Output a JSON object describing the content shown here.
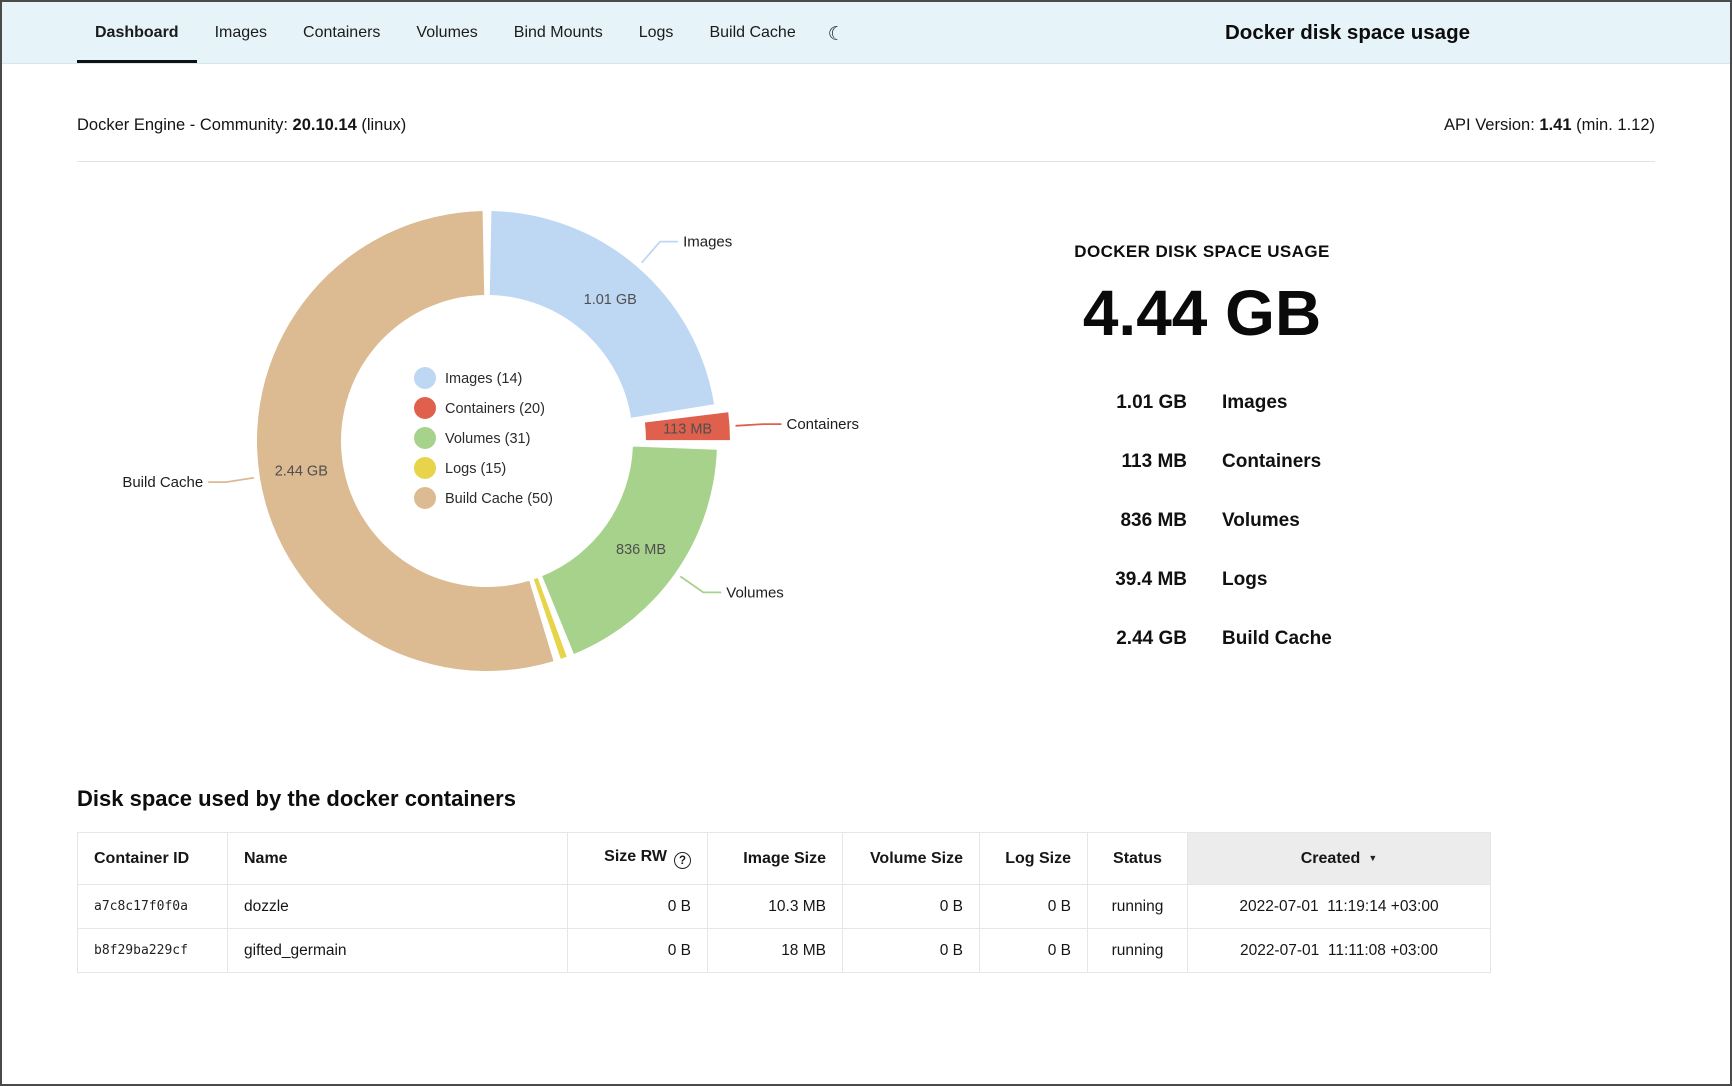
{
  "icons": {
    "moon": "☾",
    "help": "?",
    "sort_desc": "▼"
  },
  "header": {
    "title": "Docker disk space usage",
    "active_tab": "Dashboard",
    "tabs": [
      {
        "label": "Dashboard"
      },
      {
        "label": "Images"
      },
      {
        "label": "Containers"
      },
      {
        "label": "Volumes"
      },
      {
        "label": "Bind Mounts"
      },
      {
        "label": "Logs"
      },
      {
        "label": "Build Cache"
      }
    ]
  },
  "info_bar": {
    "engine_label": "Docker Engine - Community:",
    "engine_version": "20.10.14",
    "engine_suffix": "(linux)",
    "api_label": "API Version:",
    "api_version": "1.41",
    "api_suffix": "(min. 1.12)"
  },
  "chart_data": {
    "type": "donut",
    "title": "DOCKER DISK SPACE USAGE",
    "total_label": "4.44 GB",
    "legend_position": "center",
    "segments": [
      {
        "id": "images",
        "label": "Images",
        "count": 14,
        "value_mb": 1010,
        "size": "1.01 GB",
        "color": "#bed7f3",
        "outer_label": true,
        "show_size": true,
        "exploded": false
      },
      {
        "id": "containers",
        "label": "Containers",
        "count": 20,
        "value_mb": 113,
        "size": "113 MB",
        "color": "#e0604e",
        "outer_label": true,
        "show_size": true,
        "exploded": true
      },
      {
        "id": "volumes",
        "label": "Volumes",
        "count": 31,
        "value_mb": 836,
        "size": "836 MB",
        "color": "#a7d28b",
        "outer_label": true,
        "show_size": true,
        "exploded": false
      },
      {
        "id": "logs",
        "label": "Logs",
        "count": 15,
        "value_mb": 39.4,
        "size": "39.4 MB",
        "color": "#e7d44b",
        "outer_label": false,
        "show_size": false,
        "exploded": false
      },
      {
        "id": "build_cache",
        "label": "Build Cache",
        "count": 50,
        "value_mb": 2440,
        "size": "2.44 GB",
        "color": "#dcba92",
        "outer_label": true,
        "show_size": true,
        "exploded": false
      }
    ]
  },
  "summary": {
    "heading": "DOCKER DISK SPACE USAGE",
    "total": "4.44 GB",
    "rows": [
      {
        "size": "1.01 GB",
        "label": "Images"
      },
      {
        "size": "113 MB",
        "label": "Containers"
      },
      {
        "size": "836 MB",
        "label": "Volumes"
      },
      {
        "size": "39.4 MB",
        "label": "Logs"
      },
      {
        "size": "2.44 GB",
        "label": "Build Cache"
      }
    ]
  },
  "containers_table": {
    "heading": "Disk space used by the docker containers",
    "columns": [
      "Container ID",
      "Name",
      "Size RW",
      "Image Size",
      "Volume Size",
      "Log Size",
      "Status",
      "Created"
    ],
    "rows": [
      {
        "container_id": "a7c8c17f0f0a",
        "name": "dozzle",
        "size_rw": "0 B",
        "image_size": "10.3 MB",
        "volume_size": "0 B",
        "log_size": "0 B",
        "status": "running",
        "created": "2022-07-01  11:19:14 +03:00"
      },
      {
        "container_id": "b8f29ba229cf",
        "name": "gifted_germain",
        "size_rw": "0 B",
        "image_size": "18 MB",
        "volume_size": "0 B",
        "log_size": "0 B",
        "status": "running",
        "created": "2022-07-01  11:11:08 +03:00"
      }
    ]
  }
}
